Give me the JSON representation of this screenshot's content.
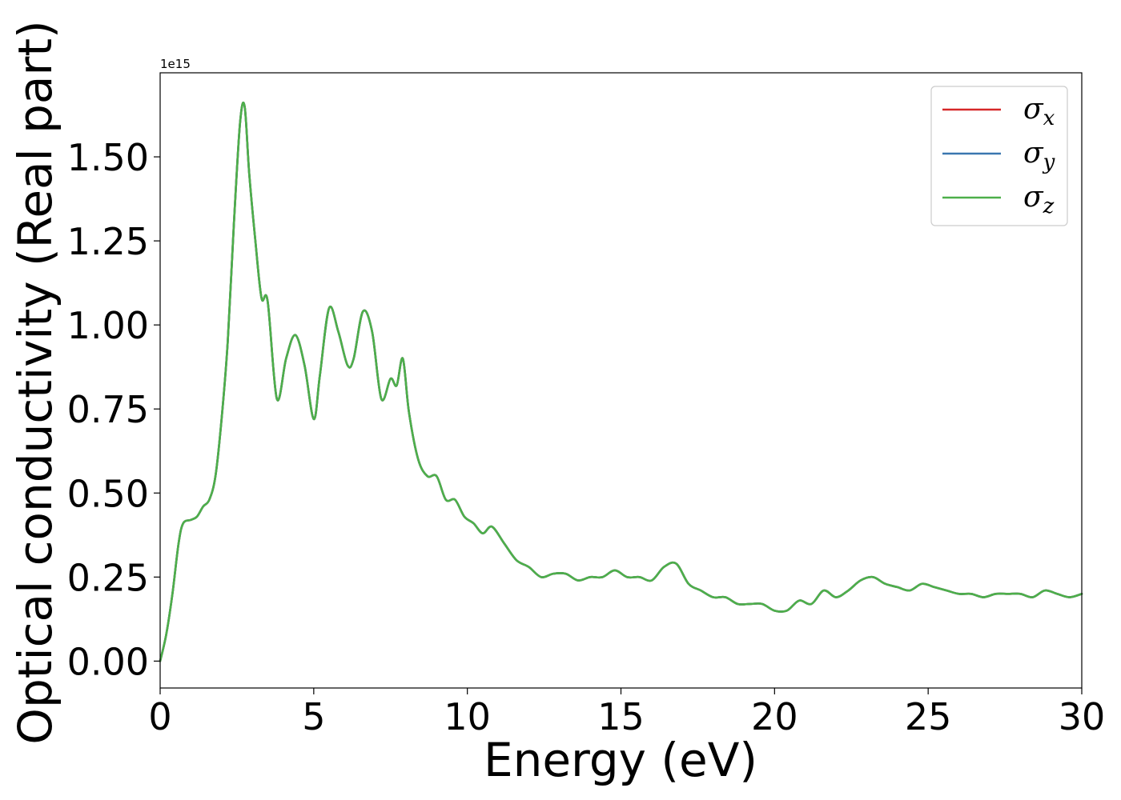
{
  "chart_data": {
    "type": "line",
    "xlabel": "Energy (eV)",
    "ylabel": "Optical conductivity (Real part)",
    "y_offset_label": "1e15",
    "xlim": [
      0,
      30
    ],
    "ylim": [
      -0.08,
      1.75
    ],
    "y_scale": 1000000000000000.0,
    "x_ticks": [
      0,
      5,
      10,
      15,
      20,
      25,
      30
    ],
    "x_tick_labels": [
      "0",
      "5",
      "10",
      "15",
      "20",
      "25",
      "30"
    ],
    "y_ticks": [
      0.0,
      0.25,
      0.5,
      0.75,
      1.0,
      1.25,
      1.5
    ],
    "y_tick_labels": [
      "0.00",
      "0.25",
      "0.50",
      "0.75",
      "1.00",
      "1.25",
      "1.50"
    ],
    "grid": false,
    "legend_position": "top-right",
    "colors": {
      "sigma_x": "#d62728",
      "sigma_y": "#3a77b0",
      "sigma_z": "#4daf4a"
    },
    "x": [
      0,
      0.2,
      0.4,
      0.6,
      0.75,
      1.0,
      1.2,
      1.4,
      1.6,
      1.8,
      2.0,
      2.2,
      2.4,
      2.6,
      2.75,
      2.9,
      3.1,
      3.3,
      3.5,
      3.8,
      4.1,
      4.4,
      4.7,
      5.0,
      5.2,
      5.5,
      5.8,
      6.1,
      6.3,
      6.6,
      6.9,
      7.2,
      7.5,
      7.7,
      7.9,
      8.1,
      8.4,
      8.7,
      9.0,
      9.3,
      9.6,
      9.9,
      10.2,
      10.5,
      10.8,
      11.2,
      11.6,
      12.0,
      12.4,
      12.8,
      13.2,
      13.6,
      14.0,
      14.4,
      14.8,
      15.2,
      15.6,
      16.0,
      16.4,
      16.8,
      17.2,
      17.6,
      18.0,
      18.4,
      18.8,
      19.2,
      19.6,
      20.0,
      20.4,
      20.8,
      21.2,
      21.6,
      22.0,
      22.4,
      22.8,
      23.2,
      23.6,
      24.0,
      24.4,
      24.8,
      25.2,
      25.6,
      26.0,
      26.4,
      26.8,
      27.2,
      27.6,
      28.0,
      28.4,
      28.8,
      29.2,
      29.6,
      30.0
    ],
    "series": [
      {
        "name": "σ_x",
        "label_base": "σ",
        "label_sub": "x",
        "values": [
          0.0,
          0.08,
          0.2,
          0.35,
          0.41,
          0.42,
          0.43,
          0.46,
          0.48,
          0.55,
          0.72,
          0.95,
          1.3,
          1.6,
          1.65,
          1.45,
          1.25,
          1.08,
          1.07,
          0.78,
          0.9,
          0.97,
          0.88,
          0.72,
          0.85,
          1.05,
          0.98,
          0.88,
          0.9,
          1.04,
          0.98,
          0.78,
          0.84,
          0.82,
          0.9,
          0.74,
          0.6,
          0.55,
          0.55,
          0.48,
          0.48,
          0.43,
          0.41,
          0.38,
          0.4,
          0.35,
          0.3,
          0.28,
          0.25,
          0.26,
          0.26,
          0.24,
          0.25,
          0.25,
          0.27,
          0.25,
          0.25,
          0.24,
          0.28,
          0.29,
          0.23,
          0.21,
          0.19,
          0.19,
          0.17,
          0.17,
          0.17,
          0.15,
          0.15,
          0.18,
          0.17,
          0.21,
          0.19,
          0.21,
          0.24,
          0.25,
          0.23,
          0.22,
          0.21,
          0.23,
          0.22,
          0.21,
          0.2,
          0.2,
          0.19,
          0.2,
          0.2,
          0.2,
          0.19,
          0.21,
          0.2,
          0.19,
          0.2
        ]
      },
      {
        "name": "σ_y",
        "label_base": "σ",
        "label_sub": "y",
        "values": [
          0.0,
          0.08,
          0.2,
          0.35,
          0.41,
          0.42,
          0.43,
          0.46,
          0.48,
          0.55,
          0.72,
          0.95,
          1.3,
          1.6,
          1.65,
          1.45,
          1.25,
          1.08,
          1.07,
          0.78,
          0.9,
          0.97,
          0.88,
          0.72,
          0.85,
          1.05,
          0.98,
          0.88,
          0.9,
          1.04,
          0.98,
          0.78,
          0.84,
          0.82,
          0.9,
          0.74,
          0.6,
          0.55,
          0.55,
          0.48,
          0.48,
          0.43,
          0.41,
          0.38,
          0.4,
          0.35,
          0.3,
          0.28,
          0.25,
          0.26,
          0.26,
          0.24,
          0.25,
          0.25,
          0.27,
          0.25,
          0.25,
          0.24,
          0.28,
          0.29,
          0.23,
          0.21,
          0.19,
          0.19,
          0.17,
          0.17,
          0.17,
          0.15,
          0.15,
          0.18,
          0.17,
          0.21,
          0.19,
          0.21,
          0.24,
          0.25,
          0.23,
          0.22,
          0.21,
          0.23,
          0.22,
          0.21,
          0.2,
          0.2,
          0.19,
          0.2,
          0.2,
          0.2,
          0.19,
          0.21,
          0.2,
          0.19,
          0.2
        ]
      },
      {
        "name": "σ_z",
        "label_base": "σ",
        "label_sub": "z",
        "values": [
          0.0,
          0.08,
          0.2,
          0.35,
          0.41,
          0.42,
          0.43,
          0.46,
          0.48,
          0.55,
          0.72,
          0.95,
          1.3,
          1.6,
          1.65,
          1.45,
          1.25,
          1.08,
          1.07,
          0.78,
          0.9,
          0.97,
          0.88,
          0.72,
          0.85,
          1.05,
          0.98,
          0.88,
          0.9,
          1.04,
          0.98,
          0.78,
          0.84,
          0.82,
          0.9,
          0.74,
          0.6,
          0.55,
          0.55,
          0.48,
          0.48,
          0.43,
          0.41,
          0.38,
          0.4,
          0.35,
          0.3,
          0.28,
          0.25,
          0.26,
          0.26,
          0.24,
          0.25,
          0.25,
          0.27,
          0.25,
          0.25,
          0.24,
          0.28,
          0.29,
          0.23,
          0.21,
          0.19,
          0.19,
          0.17,
          0.17,
          0.17,
          0.15,
          0.15,
          0.18,
          0.17,
          0.21,
          0.19,
          0.21,
          0.24,
          0.25,
          0.23,
          0.22,
          0.21,
          0.23,
          0.22,
          0.21,
          0.2,
          0.2,
          0.19,
          0.2,
          0.2,
          0.2,
          0.19,
          0.21,
          0.2,
          0.19,
          0.2
        ]
      }
    ]
  }
}
